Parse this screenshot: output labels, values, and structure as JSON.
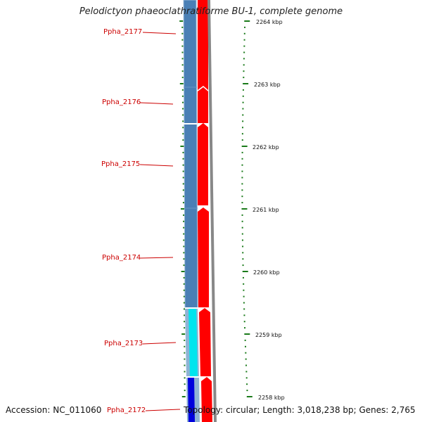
{
  "title": "Pelodictyon phaeoclathratiforme BU-1, complete genome",
  "genes": [
    {
      "label": "Ppha_2177",
      "color": "#cc0000"
    },
    {
      "label": "Ppha_2176",
      "color": "#cc0000"
    },
    {
      "label": "Ppha_2175",
      "color": "#cc0000"
    },
    {
      "label": "Ppha_2174",
      "color": "#cc0000"
    },
    {
      "label": "Ppha_2173",
      "color": "#cc0000"
    },
    {
      "label": "Ppha_2172",
      "color": "#cc0000"
    }
  ],
  "ticks": [
    "2264 kbp",
    "2263 kbp",
    "2262 kbp",
    "2261 kbp",
    "2260 kbp",
    "2259 kbp",
    "2258 kbp"
  ],
  "footer": {
    "accession": "Accession: NC_011060",
    "topology": "Topology: circular; Length: 3,018,238 bp; Genes: 2,765"
  },
  "colors": {
    "cds_track": "#ff0000",
    "feature_steel_blue": "#4a7fb5",
    "feature_cyan": "#00e5ee",
    "feature_blue": "#0000dd",
    "backbone": "#888888",
    "tick_marks": "#1a7a1a",
    "label_lines": "#cc0000"
  }
}
